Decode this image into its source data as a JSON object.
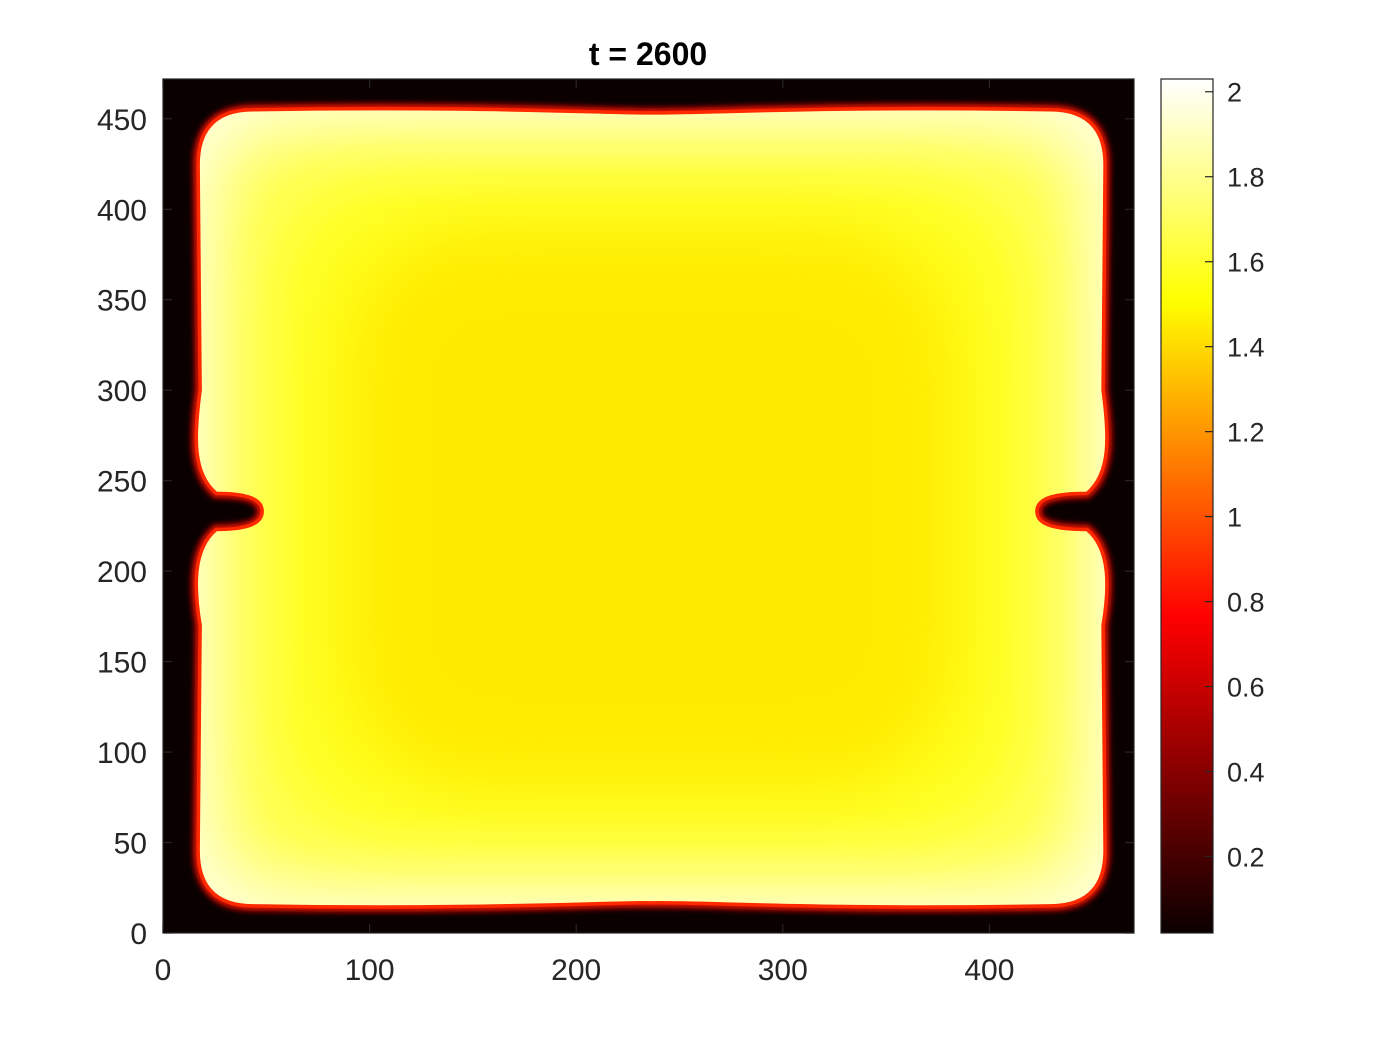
{
  "chart_data": {
    "type": "heatmap",
    "title": "t = 2600",
    "xlabel": "",
    "ylabel": "",
    "xlim": [
      0,
      470
    ],
    "ylim": [
      0,
      472
    ],
    "x_ticks": [
      0,
      100,
      200,
      300,
      400
    ],
    "y_ticks": [
      0,
      50,
      100,
      150,
      200,
      250,
      300,
      350,
      400,
      450
    ],
    "colormap": "hot",
    "colorbar": {
      "lim": [
        0.02,
        2.03
      ],
      "ticks": [
        0.2,
        0.4,
        0.6,
        0.8,
        1,
        1.2,
        1.4,
        1.6,
        1.8,
        2
      ]
    },
    "region": {
      "background_value": 0.02,
      "x_extent": [
        17,
        456
      ],
      "y_extent": [
        15,
        455
      ],
      "edge_peak_value": 1.95,
      "interior_value": 1.45,
      "notches": [
        {
          "x_tip": 48,
          "y_center": 233,
          "half_height": 10
        },
        {
          "x_tip": 423,
          "y_center": 233,
          "half_height": 10
        }
      ]
    },
    "grid": false,
    "legend": "none"
  }
}
